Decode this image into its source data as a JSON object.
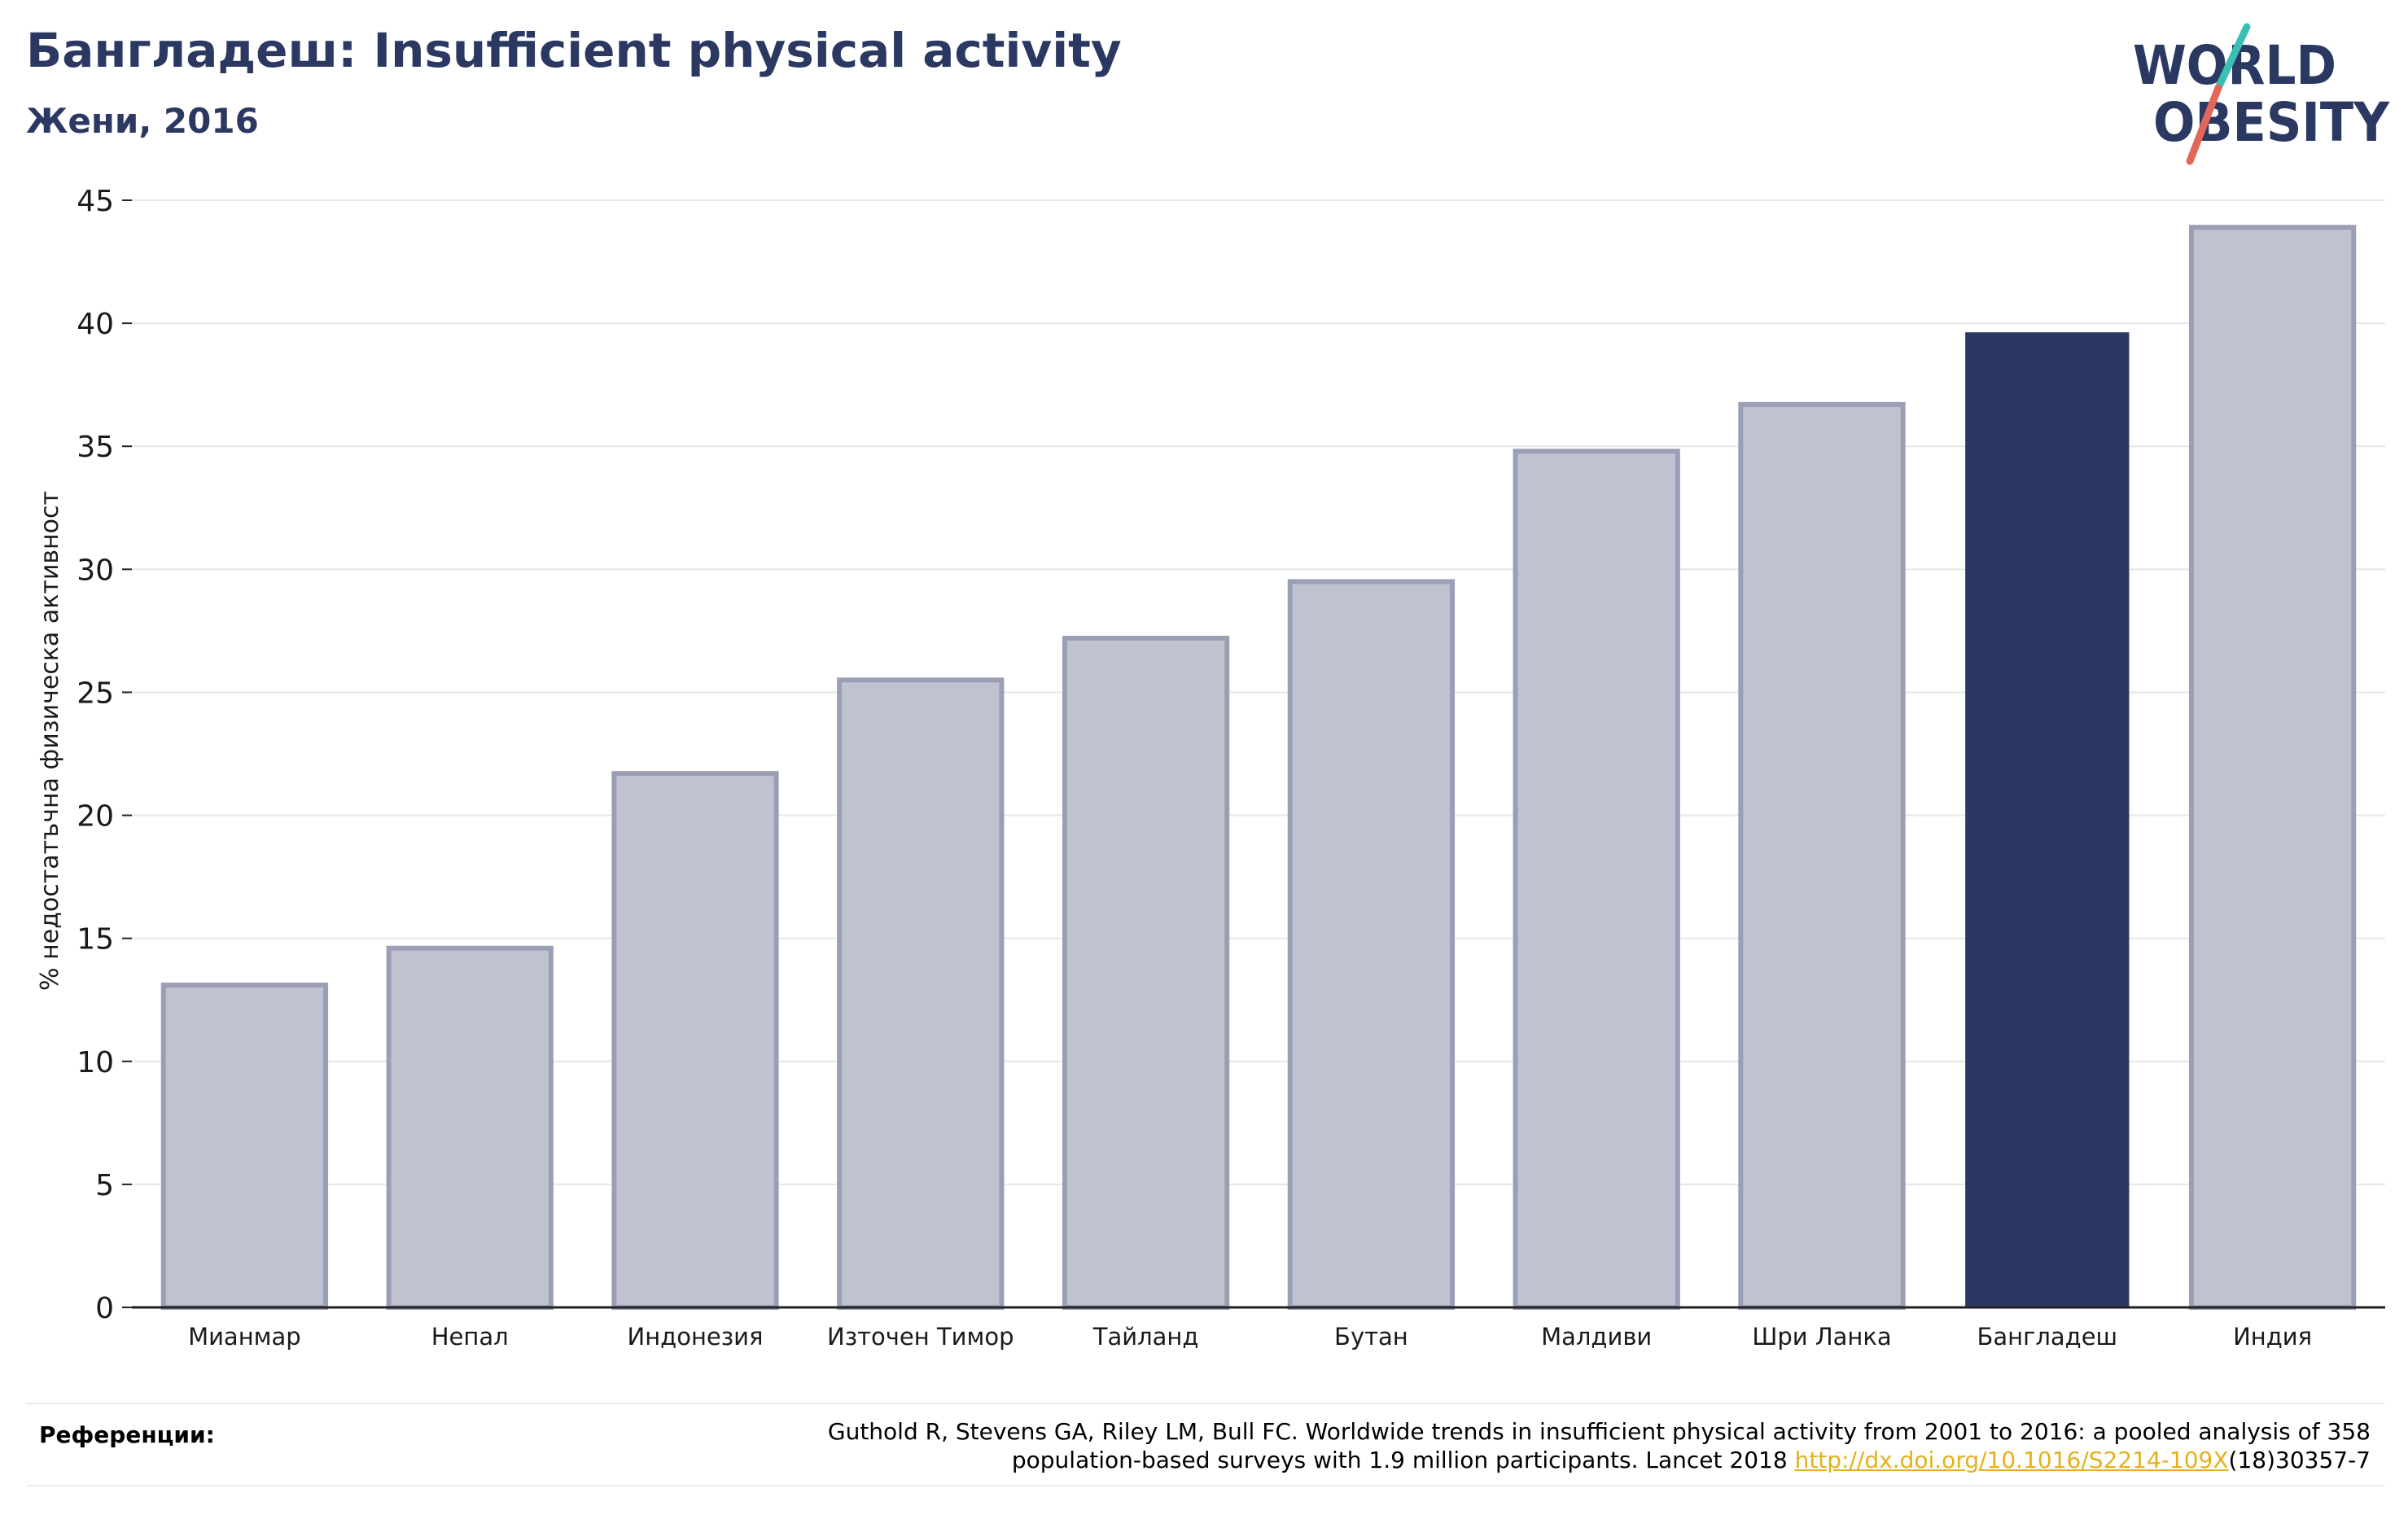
{
  "title": "Бангладеш: Insufficient physical activity",
  "subtitle": "Жени, 2016",
  "logo": {
    "line1": "WORLD",
    "line2": "OBESITY"
  },
  "colors": {
    "text": "#2b3862",
    "bar": "#bfc2cf",
    "bar_edge": "#9a9fb6",
    "highlight": "#2b3862",
    "grid": "#e6e6e6",
    "link": "#e4b01d",
    "logo_slash_top": "#3bbfb4",
    "logo_slash_bottom": "#e0675a"
  },
  "chart_data": {
    "type": "bar",
    "categories": [
      "Мианмар",
      "Непал",
      "Индонезия",
      "Източен Тимор",
      "Тайланд",
      "Бутан",
      "Малдиви",
      "Шри Ланка",
      "Бангладеш",
      "Индия"
    ],
    "values": [
      13.1,
      14.6,
      21.7,
      25.5,
      27.2,
      29.5,
      34.8,
      36.7,
      39.6,
      43.9
    ],
    "highlight": "Бангладеш",
    "ylabel": "% недостатъчна физическа активност",
    "xlabel": "",
    "ylim": [
      0,
      45
    ],
    "yticks": [
      0,
      5,
      10,
      15,
      20,
      25,
      30,
      35,
      40,
      45
    ],
    "grid": true
  },
  "references": {
    "label": "Референции:",
    "line1": "Guthold R, Stevens GA, Riley LM, Bull FC. Worldwide trends in insufficient physical activity from 2001 to 2016: a pooled analysis of 358",
    "line2_prefix": "population-based surveys with 1.9 million participants. Lancet 2018 ",
    "link": "http://dx.doi.org/10.1016/S2214-109X",
    "line2_suffix": "(18)30357-7"
  }
}
